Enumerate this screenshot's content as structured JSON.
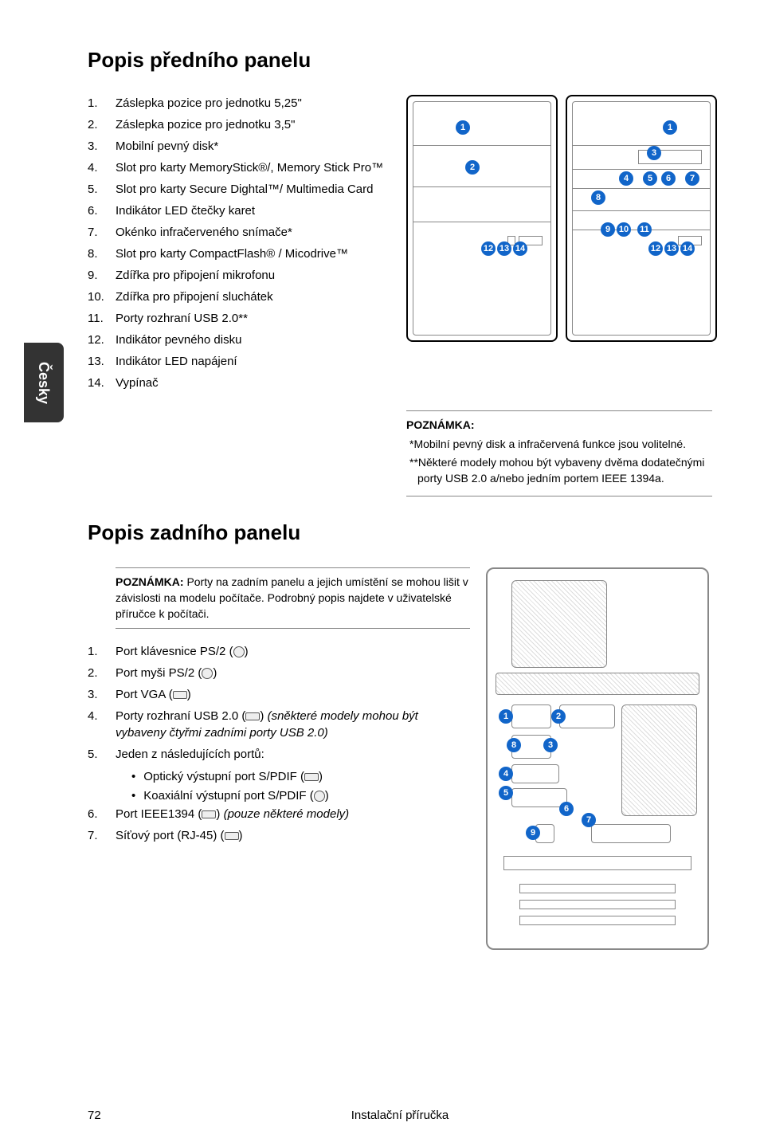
{
  "sideTab": "Česky",
  "front": {
    "heading": "Popis předního panelu",
    "items": [
      "Záslepka pozice pro jednotku 5,25\"",
      "Záslepka pozice pro jednotku 3,5\"",
      "Mobilní pevný disk*",
      "Slot pro karty MemoryStick®/, Memory Stick Pro™",
      "Slot pro karty Secure Dightal™/ Multimedia Card",
      "Indikátor LED čtečky karet",
      "Okénko infračerveného snímače*",
      "Slot pro karty CompactFlash® / Micodrive™",
      "Zdířka pro připojení mikrofonu",
      "Zdířka pro připojení sluchátek",
      "Porty rozhraní USB 2.0**",
      "Indikátor pevného disku",
      "Indikátor LED napájení",
      "Vypínač"
    ],
    "note": {
      "title": "POZNÁMKA:",
      "line1": "*Mobilní pevný disk a infračervená funkce jsou volitelné.",
      "line2": "**Některé modely mohou být vybaveny dvěma dodatečnými porty USB 2.0 a/nebo jedním portem IEEE 1394a."
    },
    "diagram1": {
      "callouts": [
        "1",
        "2",
        "12",
        "13",
        "14"
      ]
    },
    "diagram2": {
      "callouts": [
        "1",
        "3",
        "4",
        "5",
        "6",
        "7",
        "8",
        "9",
        "10",
        "11",
        "12",
        "13",
        "14"
      ]
    }
  },
  "rear": {
    "heading": "Popis zadního panelu",
    "noteTitle": "POZNÁMKA: ",
    "noteBody": "Porty na zadním panelu a jejich umístění se mohou lišit v závislosti na modelu počítače. Podrobný popis najdete v uživatelské příručce k počítači.",
    "items": [
      {
        "n": "1.",
        "t": "Port klávesnice PS/2 (",
        "icon": "circ",
        "after": ")"
      },
      {
        "n": "2.",
        "t": "Port myši PS/2 (",
        "icon": "circ",
        "after": ")"
      },
      {
        "n": "3.",
        "t": "Port VGA (",
        "icon": "rect",
        "after": ")"
      },
      {
        "n": "4.",
        "t": "Porty rozhraní USB 2.0 (",
        "icon": "rect",
        "after": ") ",
        "italic": "(sněkteré modely mohou být vybaveny čtyřmi zadními porty USB 2.0)"
      },
      {
        "n": "5.",
        "t": "Jeden z následujících portů:"
      },
      {
        "n": "6.",
        "t": "Port IEEE1394 (",
        "icon": "rect",
        "after": ") ",
        "italic": "(pouze některé modely)"
      },
      {
        "n": "7.",
        "t": "Síťový port (RJ-45) (",
        "icon": "rect",
        "after": ")"
      }
    ],
    "subitems": [
      {
        "t": "Optický výstupní port S/PDIF (",
        "icon": "rect",
        "after": ")"
      },
      {
        "t": "Koaxiální výstupní port S/PDIF (",
        "icon": "circ",
        "after": ")"
      }
    ],
    "diagram": {
      "callouts": [
        "1",
        "2",
        "3",
        "4",
        "5",
        "6",
        "7",
        "8",
        "9"
      ]
    }
  },
  "footer": {
    "page": "72",
    "title": "Instalační příručka"
  },
  "colors": {
    "callout_bg": "#1165c9",
    "callout_fg": "#ffffff",
    "border": "#888888",
    "text": "#000000",
    "tab_bg": "#333333"
  }
}
